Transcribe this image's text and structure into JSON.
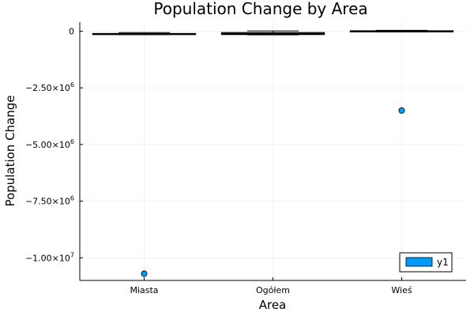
{
  "chart_data": {
    "type": "box",
    "title": "Population Change by Area",
    "xlabel": "Area",
    "ylabel": "Population Change",
    "categories": [
      "Miasta",
      "Ogółem",
      "Wieś"
    ],
    "ylim": [
      -11000000,
      400000
    ],
    "yticks": [
      {
        "value": 0,
        "mantissa": "0",
        "exponent": ""
      },
      {
        "value": -2500000,
        "mantissa": "−2.50×10",
        "exponent": "6"
      },
      {
        "value": -5000000,
        "mantissa": "−5.00×10",
        "exponent": "6"
      },
      {
        "value": -7500000,
        "mantissa": "−7.50×10",
        "exponent": "6"
      },
      {
        "value": -10000000,
        "mantissa": "−1.00×10",
        "exponent": "7"
      }
    ],
    "grid": true,
    "legend_position": "bottom-right",
    "series": [
      {
        "name": "y1",
        "color": "#009AFA",
        "boxes": [
          {
            "category": "Miasta",
            "whisker_low": -150000,
            "q1": -140000,
            "median": -120000,
            "q3": -100000,
            "whisker_high": -60000
          },
          {
            "category": "Ogółem",
            "whisker_low": -160000,
            "q1": -150000,
            "median": -110000,
            "q3": -60000,
            "whisker_high": 10000
          },
          {
            "category": "Wieś",
            "whisker_low": -30000,
            "q1": -20000,
            "median": 0,
            "q3": 20000,
            "whisker_high": 40000
          }
        ],
        "outliers": [
          {
            "category": "Miasta",
            "value": -10700000
          },
          {
            "category": "Wieś",
            "value": -3500000
          }
        ]
      }
    ]
  }
}
